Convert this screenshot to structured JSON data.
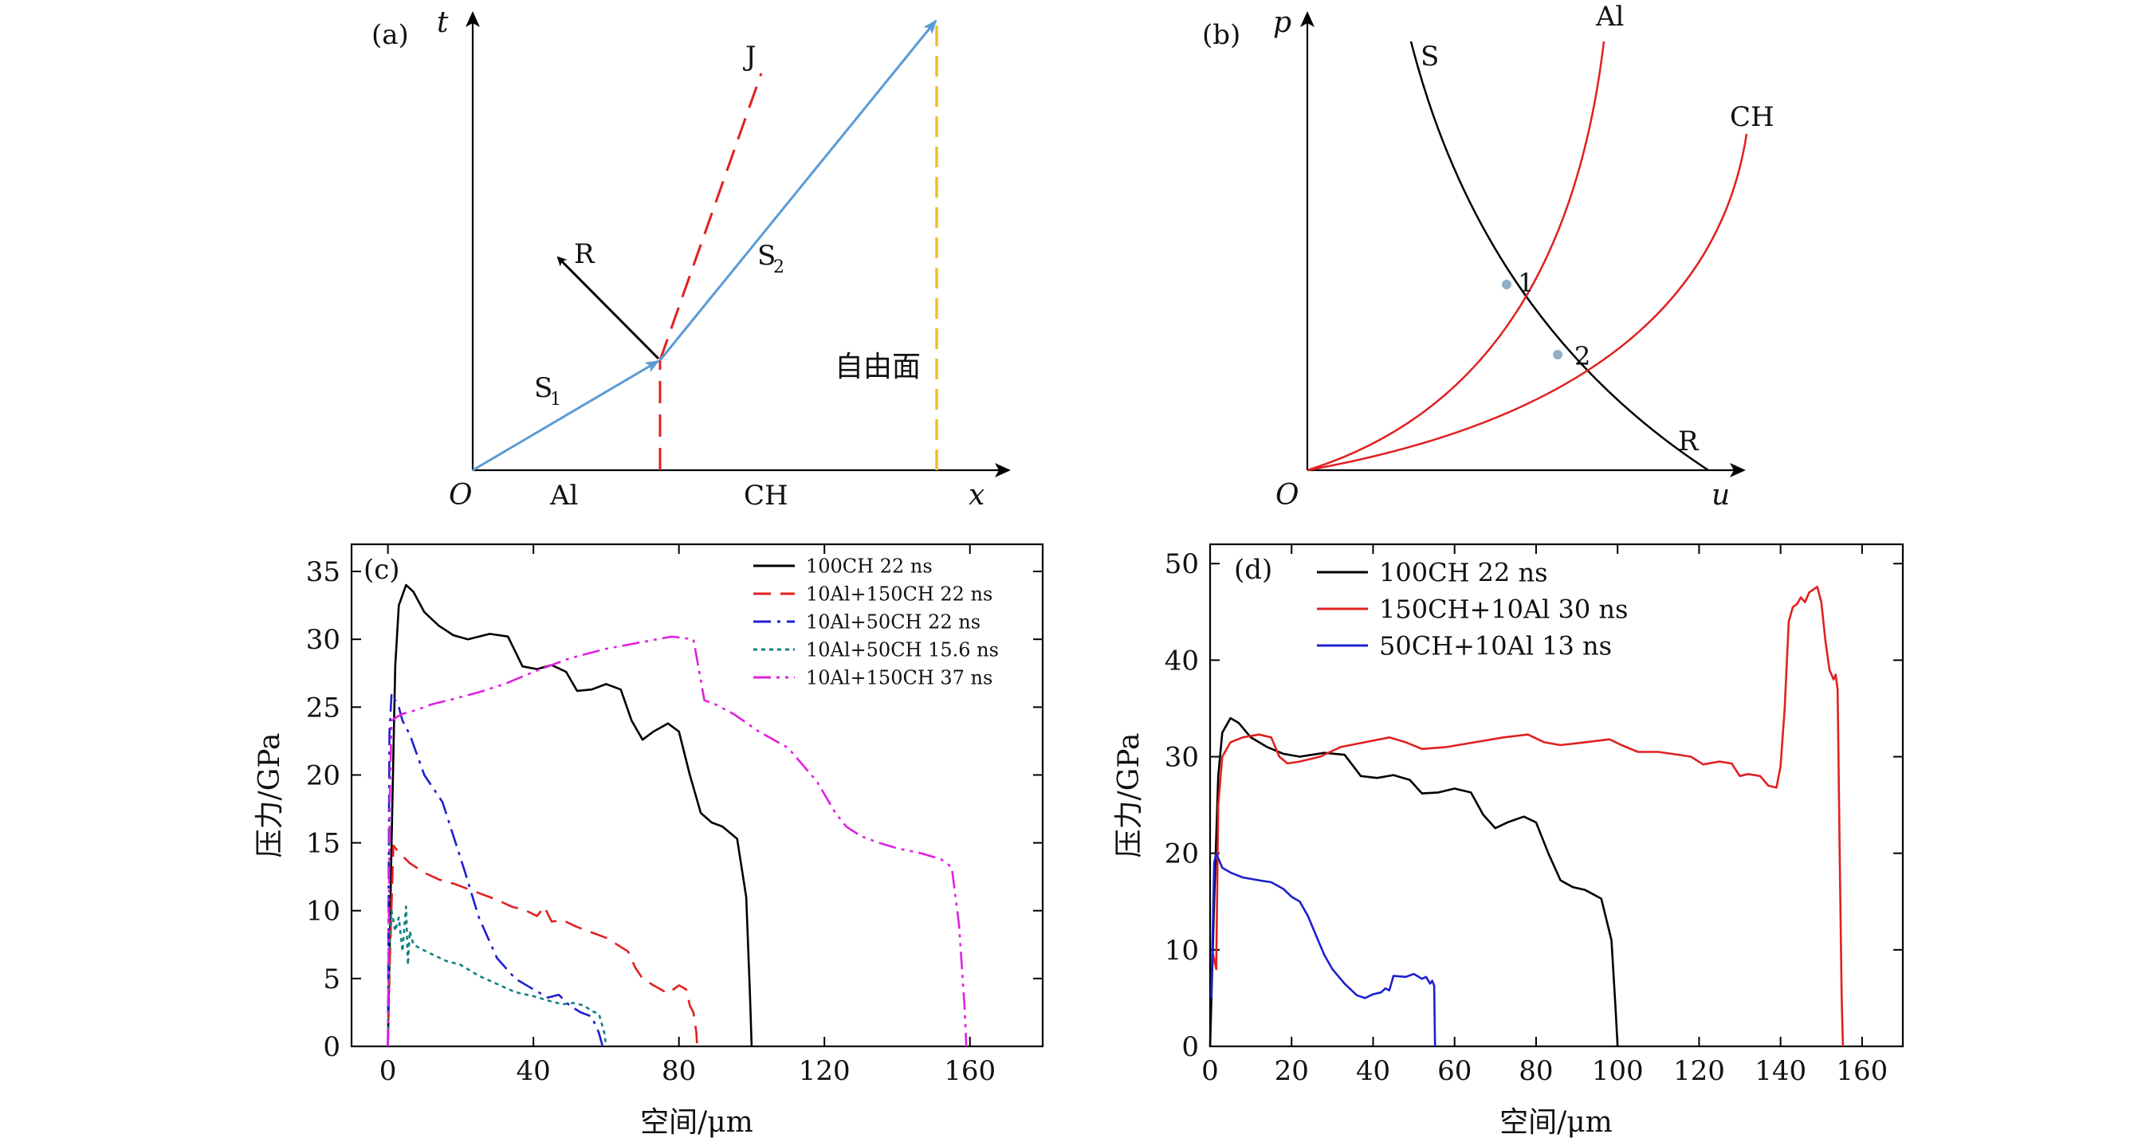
{
  "panels": {
    "a": {
      "label": "(a)",
      "t_axis": "t",
      "x_axis": "x",
      "origin": "O",
      "R": "R",
      "J": "J",
      "S1": "S",
      "S1_sub": "1",
      "S2": "S",
      "S2_sub": "2",
      "free_surface": "自由面",
      "region_al": "Al",
      "region_ch": "CH",
      "colors": {
        "shock": "#5b9bd5",
        "interface": "#e02020",
        "free_surface": "#f0c020",
        "R": "#000000"
      }
    },
    "b": {
      "label": "(b)",
      "p_axis": "p",
      "u_axis": "u",
      "origin": "O",
      "S": "S",
      "R": "R",
      "Al": "Al",
      "CH": "CH",
      "point1": "1",
      "point2": "2",
      "colors": {
        "SR_curve": "#000000",
        "hugoniot": "#e02020",
        "points": "#8fb0c8"
      }
    },
    "c": {
      "label": "(c)"
    },
    "d": {
      "label": "(d)"
    }
  },
  "chart_data": [
    {
      "type": "line",
      "panel": "c",
      "xlabel": "空间/μm",
      "ylabel": "压力/GPa",
      "xlim": [
        -10,
        180
      ],
      "ylim": [
        0,
        37
      ],
      "xticks": [
        0,
        40,
        80,
        120,
        160
      ],
      "yticks": [
        0,
        5,
        10,
        15,
        20,
        25,
        30,
        35
      ],
      "legend_position": "top-right",
      "series": [
        {
          "name": "100CH 22 ns",
          "color": "#000000",
          "dash": "solid",
          "x": [
            0,
            1,
            2,
            3,
            5,
            7,
            10,
            14,
            18,
            22,
            28,
            33,
            37,
            41,
            45,
            49,
            52,
            56,
            60,
            64,
            67,
            70,
            73,
            77,
            80,
            83,
            86,
            89,
            92,
            96,
            98.5,
            99.5,
            100
          ],
          "y": [
            0,
            15,
            28,
            32.5,
            34,
            33.5,
            32,
            31,
            30.3,
            30,
            30.4,
            30.2,
            28,
            27.8,
            28.1,
            27.6,
            26.2,
            26.3,
            26.7,
            26.3,
            24,
            22.6,
            23.2,
            23.8,
            23.2,
            20,
            17.2,
            16.5,
            16.2,
            15.3,
            11,
            4,
            0
          ]
        },
        {
          "name": "10Al+150CH 22 ns",
          "color": "#e02020",
          "dash": "dashed",
          "x": [
            0,
            0.5,
            1.5,
            3,
            6,
            10,
            14,
            18,
            22,
            26,
            30,
            34,
            38,
            41,
            43,
            45,
            48,
            52,
            56,
            60,
            63,
            66,
            68,
            70,
            73,
            77,
            80,
            82,
            83,
            84,
            84.8,
            85
          ],
          "y": [
            0,
            6,
            14.8,
            14.3,
            13.5,
            12.8,
            12.3,
            12,
            11.6,
            11.2,
            10.8,
            10.3,
            10,
            9.6,
            10.3,
            9.2,
            9.3,
            8.8,
            8.4,
            8,
            7.5,
            7,
            5.8,
            5,
            4.5,
            3.9,
            4.5,
            4.2,
            3,
            2.5,
            1,
            0
          ]
        },
        {
          "name": "10Al+50CH 22 ns",
          "color": "#1f1fd0",
          "dash": "dashdot",
          "x": [
            0,
            0.4,
            1,
            2,
            3,
            4,
            5,
            6,
            8,
            10,
            12,
            15,
            18,
            21,
            25,
            30,
            35,
            40,
            44,
            47,
            50,
            53,
            56,
            58,
            59
          ],
          "y": [
            0,
            23,
            26,
            25.5,
            25,
            24,
            23.5,
            23,
            21.5,
            20,
            19.2,
            18,
            15.5,
            13,
            9.5,
            6.5,
            5,
            4.2,
            3.6,
            3.8,
            3,
            2.5,
            2.2,
            1,
            0
          ]
        },
        {
          "name": "10Al+50CH 15.6 ns",
          "color": "#128080",
          "dash": "dotted",
          "x": [
            0,
            0.5,
            1,
            2,
            3,
            4,
            5,
            5.5,
            6,
            7,
            9,
            12,
            16,
            20,
            25,
            30,
            35,
            40,
            45,
            48,
            51,
            54,
            56,
            58,
            59.5,
            60
          ],
          "y": [
            0,
            8,
            10,
            8.5,
            9.5,
            7,
            10.3,
            6,
            8.5,
            7.5,
            7.2,
            6.8,
            6.3,
            6,
            5.2,
            4.6,
            4,
            3.7,
            3.3,
            3.1,
            3.2,
            3,
            2.6,
            2.4,
            1,
            0
          ]
        },
        {
          "name": "10Al+150CH 37 ns",
          "color": "#e020e0",
          "dash": "dashdotdot",
          "x": [
            0,
            0.5,
            1,
            2,
            4,
            8,
            12,
            18,
            25,
            32,
            40,
            50,
            60,
            70,
            78,
            84,
            87,
            90,
            95,
            102,
            110,
            118,
            123,
            126,
            130,
            135,
            140,
            147,
            152,
            155,
            157,
            158.5,
            159
          ],
          "y": [
            0,
            18,
            24,
            24.2,
            24.5,
            24.8,
            25.2,
            25.6,
            26.1,
            26.7,
            27.6,
            28.6,
            29.3,
            29.8,
            30.2,
            30,
            25.5,
            25.2,
            24.5,
            23.2,
            22,
            19.5,
            17.2,
            16.2,
            15.5,
            15,
            14.6,
            14.2,
            13.8,
            13.2,
            9,
            3,
            0
          ]
        }
      ]
    },
    {
      "type": "line",
      "panel": "d",
      "xlabel": "空间/μm",
      "ylabel": "压力/GPa",
      "xlim": [
        0,
        170
      ],
      "ylim": [
        0,
        52
      ],
      "xticks": [
        0,
        20,
        40,
        60,
        80,
        100,
        120,
        140,
        160
      ],
      "yticks": [
        0,
        10,
        20,
        30,
        40,
        50
      ],
      "legend_position": "top-left",
      "series": [
        {
          "name": "100CH 22 ns",
          "color": "#000000",
          "x": [
            0,
            1,
            2,
            3,
            5,
            7,
            10,
            14,
            18,
            22,
            28,
            33,
            37,
            41,
            45,
            49,
            52,
            56,
            60,
            64,
            67,
            70,
            73,
            77,
            80,
            83,
            86,
            89,
            92,
            96,
            98.5,
            99.5,
            100
          ],
          "y": [
            0,
            15,
            28,
            32.5,
            34,
            33.5,
            32,
            31,
            30.3,
            30,
            30.4,
            30.2,
            28,
            27.8,
            28.1,
            27.6,
            26.2,
            26.3,
            26.7,
            26.3,
            24,
            22.6,
            23.2,
            23.8,
            23.2,
            20,
            17.2,
            16.5,
            16.2,
            15.3,
            11,
            4,
            0
          ]
        },
        {
          "name": "150CH+10Al 30 ns",
          "color": "#e02020",
          "x": [
            0.5,
            1.5,
            2,
            3,
            5,
            8,
            12,
            15,
            17,
            19,
            22,
            27,
            32,
            38,
            44,
            48,
            52,
            58,
            65,
            72,
            78,
            82,
            86,
            92,
            98,
            101,
            105,
            110,
            115,
            118,
            121,
            125,
            128,
            130,
            132,
            135,
            137,
            139,
            140,
            141,
            142,
            143,
            144,
            145,
            146,
            147,
            148,
            149,
            150,
            151,
            152,
            153,
            153.5,
            154,
            154.5,
            155,
            155.3
          ],
          "y": [
            10,
            8,
            25,
            30,
            31.5,
            32,
            32.3,
            32,
            30,
            29.3,
            29.5,
            30,
            31,
            31.5,
            32,
            31.5,
            30.8,
            31,
            31.5,
            32,
            32.3,
            31.5,
            31.2,
            31.5,
            31.8,
            31.2,
            30.5,
            30.5,
            30.2,
            30,
            29.2,
            29.5,
            29.3,
            28,
            28.2,
            28,
            27,
            26.8,
            29,
            35,
            44,
            45.5,
            45.8,
            46.5,
            46,
            47,
            47.3,
            47.6,
            46,
            42,
            39,
            38,
            38.5,
            37,
            20,
            5,
            0
          ]
        },
        {
          "name": "50CH+10Al 13 ns",
          "color": "#1f1fd0",
          "x": [
            0.3,
            1,
            1.5,
            2,
            3,
            5,
            8,
            12,
            15,
            18,
            20,
            22,
            24,
            26,
            28,
            30,
            33,
            36,
            38,
            40,
            42,
            43,
            44,
            45,
            48,
            50,
            52,
            53,
            54,
            54.5,
            55,
            55.2
          ],
          "y": [
            5,
            19,
            20,
            19.5,
            18.5,
            18,
            17.5,
            17.2,
            17,
            16.3,
            15.5,
            15,
            13.5,
            11.5,
            9.5,
            8,
            6.5,
            5.3,
            5,
            5.4,
            5.6,
            6,
            5.8,
            7.3,
            7.2,
            7.5,
            7,
            7.2,
            6.5,
            6.8,
            6.3,
            0
          ]
        }
      ]
    }
  ]
}
